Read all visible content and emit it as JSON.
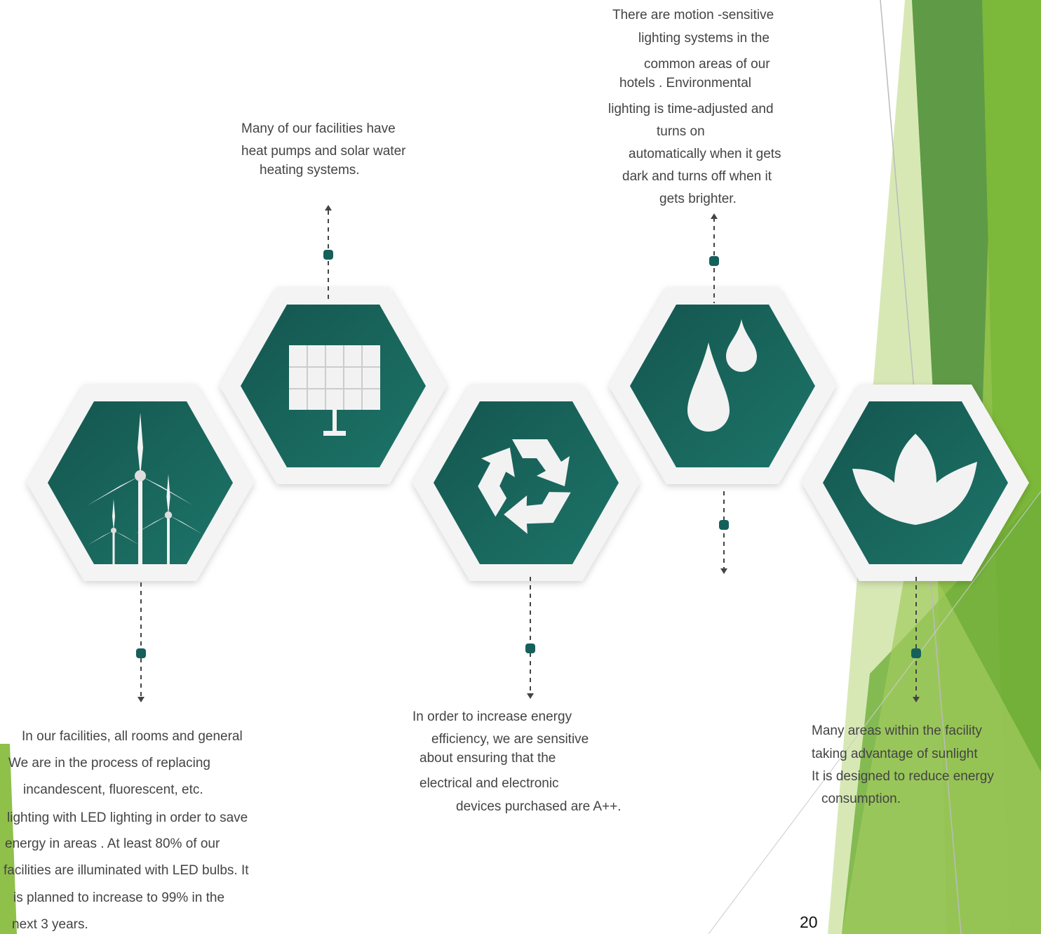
{
  "blocks": [
    {
      "lines": [
        "Many of our facilities have",
        "heat pumps and solar water",
        "heating systems."
      ]
    },
    {
      "lines": [
        "There are motion -sensitive",
        "lighting systems in the",
        "common areas of our",
        "hotels . Environmental",
        "lighting is time-adjusted and",
        "turns on",
        "automatically when it gets",
        "dark and turns off when it",
        "gets brighter."
      ]
    },
    {
      "lines": [
        "In our facilities, all rooms and general",
        "We are in the process of replacing",
        "incandescent, fluorescent, etc.",
        "lighting with LED lighting in order to save",
        "energy in areas . At least 80% of our",
        "facilities are illuminated with LED bulbs. It",
        "is planned to increase to 99% in the",
        "next 3 years."
      ]
    },
    {
      "lines": [
        "In order to increase energy",
        "efficiency, we are sensitive",
        "about ensuring that the",
        "electrical and electronic",
        "devices purchased are A++."
      ]
    },
    {
      "lines": [
        "Many areas within the facility",
        "taking advantage of sunlight",
        "It is designed to reduce energy",
        "consumption."
      ]
    }
  ],
  "page_number": "20"
}
